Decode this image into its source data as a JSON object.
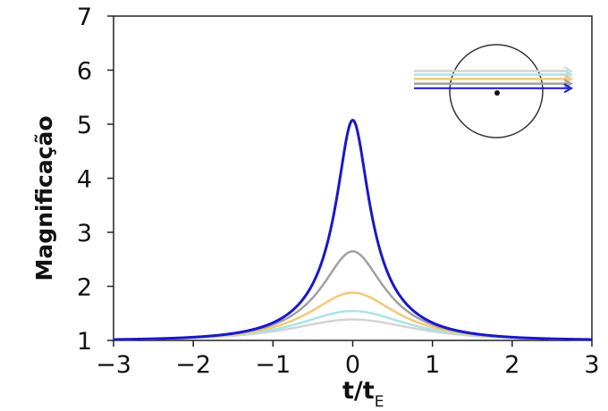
{
  "chart_data": {
    "type": "line",
    "xlabel": "t/t",
    "xlabel_subscript": "E",
    "ylabel": "Magnificação",
    "xlim": [
      -3,
      3
    ],
    "ylim": [
      1,
      7
    ],
    "xticks": [
      "−3",
      "−2",
      "−1",
      "0",
      "1",
      "2",
      "3"
    ],
    "yticks": [
      "1",
      "2",
      "3",
      "4",
      "5",
      "6",
      "7"
    ],
    "grid": false,
    "legend": "none",
    "inset": "lens circle with five source trajectory arrows, top-right",
    "series": [
      {
        "color": "#d4d4d4",
        "u0": 0.94,
        "peak": 1.34
      },
      {
        "color": "#a8e4e6",
        "u0": 0.79,
        "peak": 1.52
      },
      {
        "color": "#f6c878",
        "u0": 0.6,
        "peak": 1.89
      },
      {
        "color": "#a0a0a4",
        "u0": 0.4,
        "peak": 2.64
      },
      {
        "color": "#1a18c8",
        "u0": 0.2,
        "peak": 5.06
      }
    ]
  }
}
